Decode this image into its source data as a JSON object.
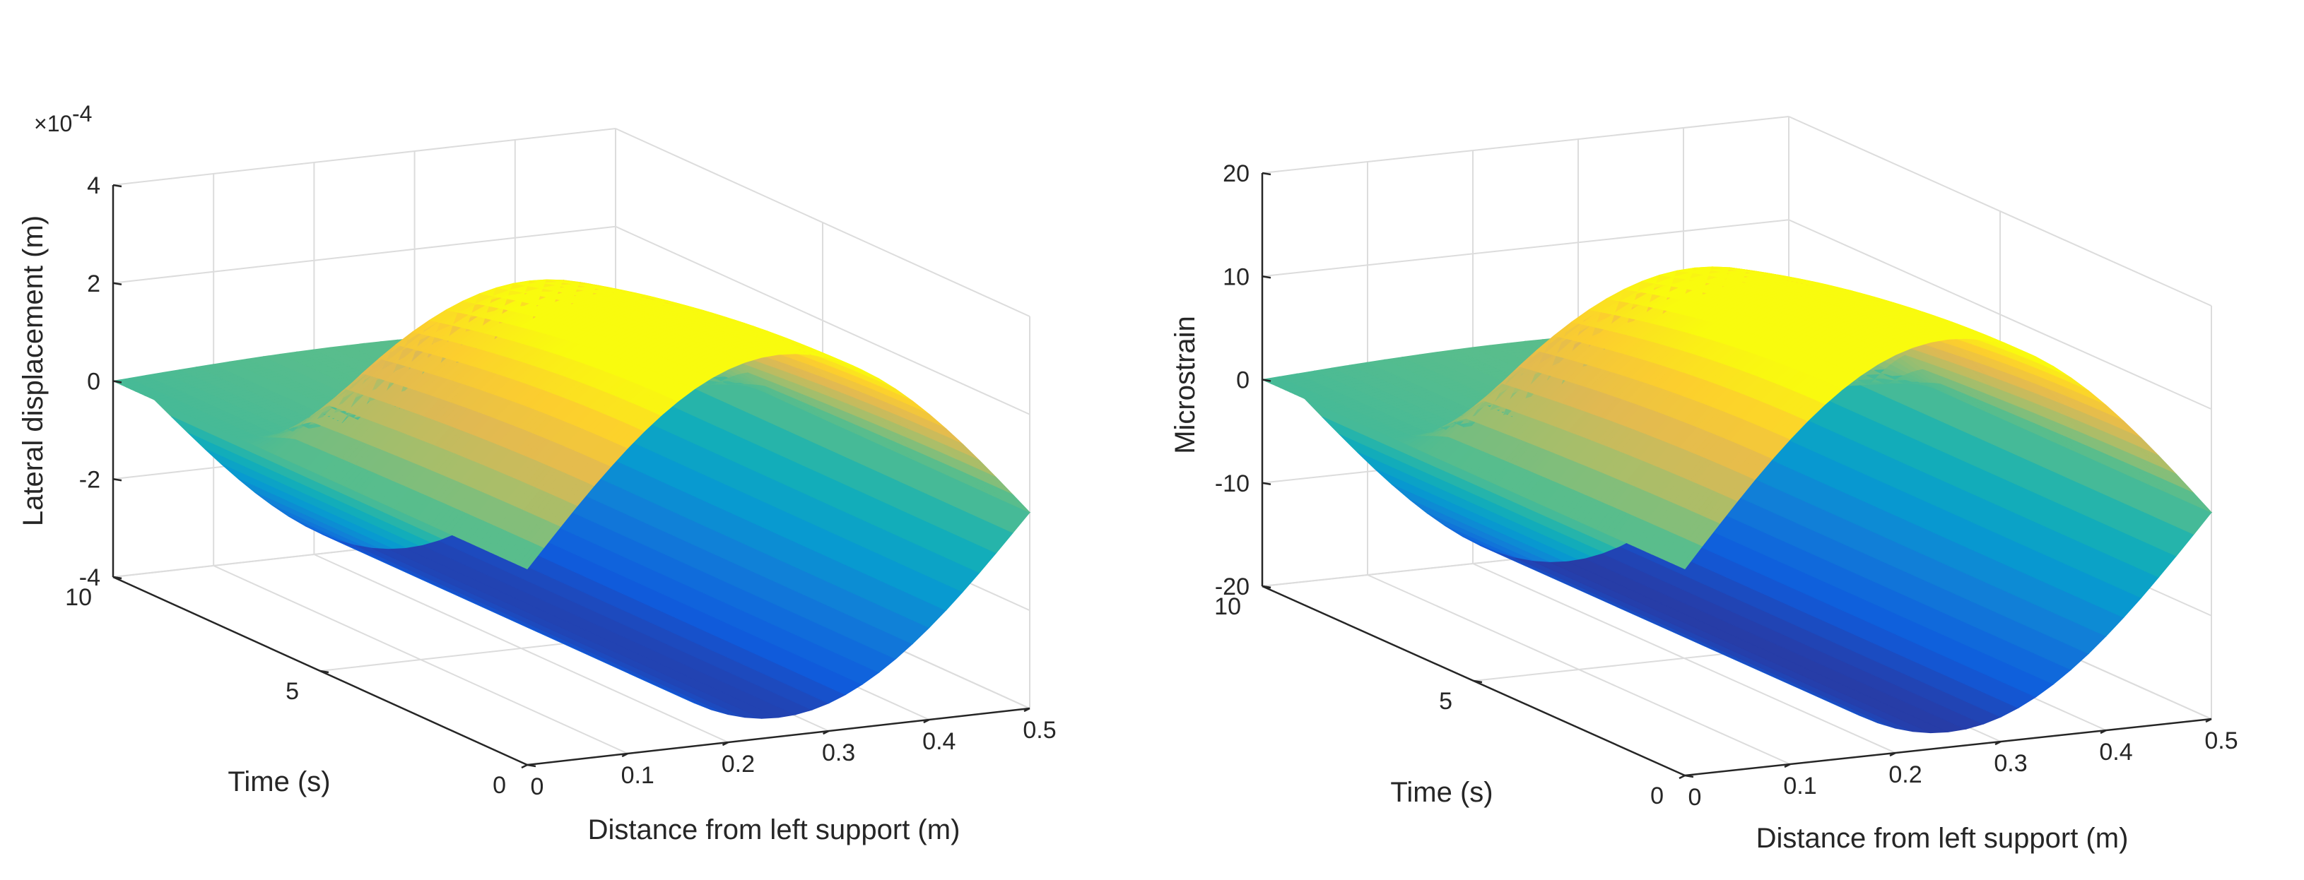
{
  "chart_data": [
    {
      "type": "surface",
      "title": "",
      "xlabel": "Distance from left support (m)",
      "ylabel": "Time (s)",
      "zlabel": "Lateral displacement (m)",
      "zmultiplier": "×10",
      "zexponent": "-4",
      "xlim": [
        0,
        0.5
      ],
      "ylim": [
        0,
        10
      ],
      "zlim": [
        -4,
        4
      ],
      "xticks": [
        0,
        0.1,
        0.2,
        0.3,
        0.4,
        0.5
      ],
      "xtick_labels": [
        "0",
        "0.1",
        "0.2",
        "0.3",
        "0.4",
        "0.5"
      ],
      "yticks": [
        0,
        5,
        10
      ],
      "ytick_labels": [
        "0",
        "5",
        "10"
      ],
      "zticks": [
        -4,
        -2,
        0,
        2,
        4
      ],
      "ztick_labels": [
        "-4",
        "-2",
        "0",
        "2",
        "4"
      ],
      "amplitude": 3.8,
      "colormap": "parula",
      "grid": true
    },
    {
      "type": "surface",
      "title": "",
      "xlabel": "Distance from left support (m)",
      "ylabel": "Time (s)",
      "zlabel": "Microstrain",
      "xlim": [
        0,
        0.5
      ],
      "ylim": [
        0,
        10
      ],
      "zlim": [
        -20,
        20
      ],
      "xticks": [
        0,
        0.1,
        0.2,
        0.3,
        0.4,
        0.5
      ],
      "xtick_labels": [
        "0",
        "0.1",
        "0.2",
        "0.3",
        "0.4",
        "0.5"
      ],
      "yticks": [
        0,
        5,
        10
      ],
      "ytick_labels": [
        "0",
        "5",
        "10"
      ],
      "zticks": [
        -20,
        -10,
        0,
        10,
        20
      ],
      "ztick_labels": [
        "-20",
        "-10",
        "0",
        "10",
        "20"
      ],
      "amplitude": 19.5,
      "colormap": "parula",
      "grid": true
    }
  ]
}
